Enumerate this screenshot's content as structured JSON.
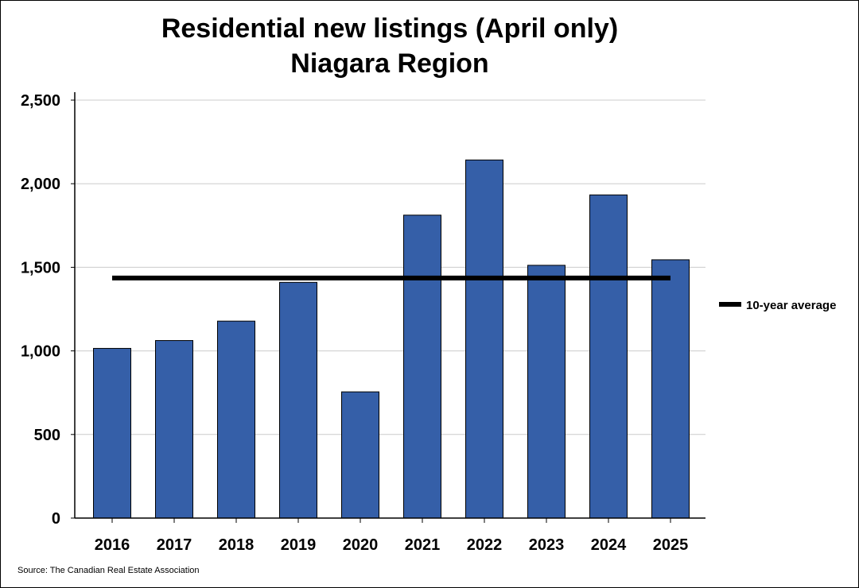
{
  "chart_data": {
    "type": "bar",
    "title": "Residential new listings (April only)",
    "subtitle": "Niagara Region",
    "categories": [
      "2016",
      "2017",
      "2018",
      "2019",
      "2020",
      "2021",
      "2022",
      "2023",
      "2024",
      "2025"
    ],
    "series": [
      {
        "values": [
          1015,
          1062,
          1178,
          1410,
          755,
          1812,
          2142,
          1512,
          1933,
          1545
        ]
      }
    ],
    "reference_line": {
      "name": "10-year average",
      "value": 1436
    },
    "ylim": [
      0,
      2500
    ],
    "yticks": [
      0,
      500,
      1000,
      1500,
      2000,
      2500
    ],
    "ytick_labels": [
      "0",
      "500",
      "1,000",
      "1,500",
      "2,000",
      "2,500"
    ],
    "xlabel": "",
    "ylabel": "",
    "grid": true,
    "legend_position": "right",
    "colors": {
      "bar": "#355fa8",
      "bar_edge": "#000000",
      "average_line": "#000000",
      "grid": "#cccccc"
    }
  },
  "footer": {
    "source": "Source: The Canadian Real Estate Association"
  }
}
